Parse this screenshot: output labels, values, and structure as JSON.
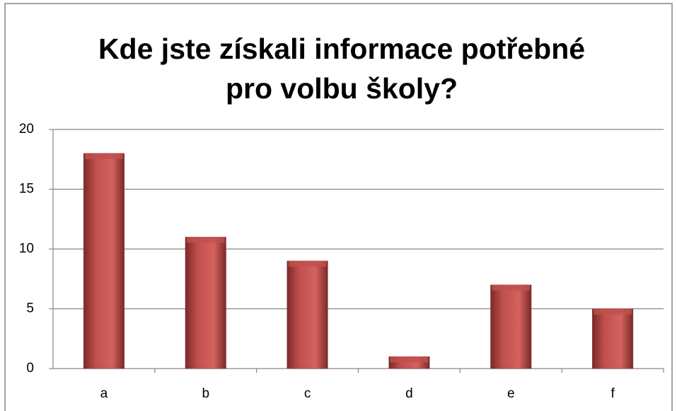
{
  "chart_data": {
    "type": "bar",
    "title": [
      "Kde jste získali informace potřebné",
      "pro volbu školy?"
    ],
    "categories": [
      "a",
      "b",
      "c",
      "d",
      "e",
      "f"
    ],
    "values": [
      18,
      11,
      9,
      1,
      7,
      5
    ],
    "color": "#c0504d",
    "ylim": [
      0,
      20
    ],
    "yticks": [
      0,
      5,
      10,
      15,
      20
    ],
    "grid": true
  }
}
